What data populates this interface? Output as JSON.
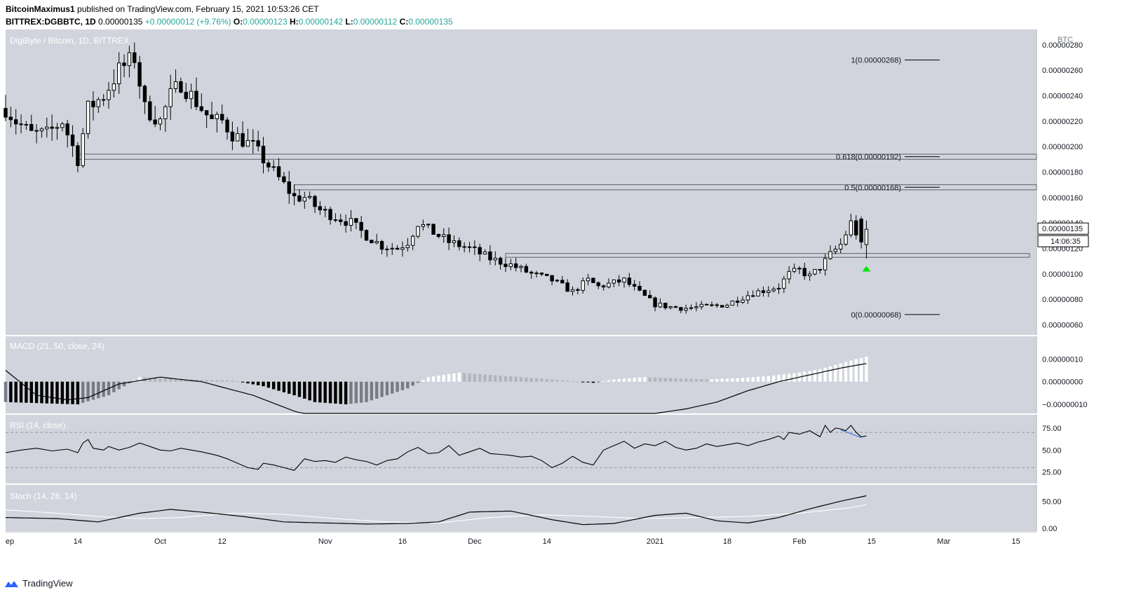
{
  "header": {
    "author": "BitcoinMaximus1",
    "published": "published on TradingView.com, February 15, 2021 10:53:26 CET",
    "symbol": "BITTREX:DGBBTC, 1D",
    "last": "0.00000135",
    "change": "+0.00000012 (+9.76%)",
    "o_label": "O:",
    "o": "0.00000123",
    "h_label": "H:",
    "h": "0.00000142",
    "l_label": "L:",
    "l": "0.00000112",
    "c_label": "C:",
    "c": "0.00000135"
  },
  "footer": {
    "brand": "TradingView"
  },
  "colors": {
    "pane_bg": "#d1d4dc",
    "bull": "#ffffff",
    "bear": "#000000",
    "arrow": "#00e600",
    "rsi_divergence": "#4a7fd6",
    "stoch_d": "#ffffff"
  },
  "chart_data": {
    "type": "candlestick",
    "title": "DigiByte / Bitcoin, 1D, BITTREX",
    "currency": "BTC",
    "price_axis": {
      "min": 5.2e-07,
      "max": 2.92e-06,
      "ticks": [
        "0.00000060",
        "0.00000080",
        "0.00000100",
        "0.00000120",
        "0.00000140",
        "0.00000160",
        "0.00000180",
        "0.00000200",
        "0.00000220",
        "0.00000240",
        "0.00000260",
        "0.00000280"
      ],
      "tick_values": [
        6e-07,
        8e-07,
        1e-06,
        1.2e-06,
        1.4e-06,
        1.6e-06,
        1.8e-06,
        2e-06,
        2.2e-06,
        2.4e-06,
        2.6e-06,
        2.8e-06
      ],
      "last_price_label": "0.00000135",
      "countdown": "14:06:35"
    },
    "x_axis": {
      "ticks": [
        "ep",
        "14",
        "Oct",
        "12",
        "Nov",
        "16",
        "Dec",
        "14",
        "2021",
        "18",
        "Feb",
        "15",
        "Mar",
        "15"
      ],
      "tick_days": [
        -14,
        0,
        16,
        28,
        48,
        63,
        77,
        91,
        112,
        126,
        140,
        154,
        168,
        182
      ]
    },
    "fib_levels": [
      {
        "label": "1(0.00000268)",
        "value": 2.68e-06
      },
      {
        "label": "0.618(0.00000192)",
        "value": 1.92e-06
      },
      {
        "label": "0.5(0.00000168)",
        "value": 1.68e-06
      },
      {
        "label": "0(0.00000068)",
        "value": 6.8e-07
      }
    ],
    "zones": [
      {
        "from_day": 0,
        "low": 1.9e-06,
        "high": 1.94e-06
      },
      {
        "from_day": 42,
        "low": 1.66e-06,
        "high": 1.7e-06
      },
      {
        "from_day": 83,
        "low": 1.13e-06,
        "high": 1.16e-06
      }
    ],
    "ohlc_sample": [
      {
        "day": 152,
        "o": 1.43e-06,
        "h": 1.45e-06,
        "l": 1.2e-06,
        "c": 1.25e-06
      },
      {
        "day": 153,
        "o": 1.23e-06,
        "h": 1.42e-06,
        "l": 1.12e-06,
        "c": 1.35e-06
      }
    ],
    "price_path_days": [
      -14,
      -12,
      -9,
      -6,
      -3,
      0,
      2,
      5,
      8,
      11,
      13,
      16,
      18,
      20,
      22,
      24,
      26,
      28,
      30,
      34,
      36,
      38,
      40,
      42,
      44,
      47,
      50,
      53,
      56,
      59,
      62,
      64,
      66,
      68,
      70,
      72,
      76,
      80,
      84,
      88,
      92,
      96,
      99,
      101,
      103,
      106,
      109,
      112,
      115,
      118,
      121,
      124,
      126,
      128,
      131,
      134,
      136,
      138,
      140,
      142,
      144,
      146,
      148,
      150,
      152,
      153
    ],
    "price_path_closes": [
      2.3e-06,
      2.2e-06,
      2.1e-06,
      2.1e-06,
      2.2e-06,
      1.9e-06,
      2.3e-06,
      2.4e-06,
      2.6e-06,
      2.7e-06,
      2.3e-06,
      2.2e-06,
      2.4e-06,
      2.5e-06,
      2.4e-06,
      2.3e-06,
      2.2e-06,
      2.2e-06,
      2.1e-06,
      2e-06,
      1.9e-06,
      1.8e-06,
      1.7e-06,
      1.6e-06,
      1.6e-06,
      1.5e-06,
      1.45e-06,
      1.4e-06,
      1.3e-06,
      1.22e-06,
      1.2e-06,
      1.25e-06,
      1.4e-06,
      1.35e-06,
      1.3e-06,
      1.25e-06,
      1.2e-06,
      1.12e-06,
      1.07e-06,
      1e-06,
      9.5e-07,
      8.6e-07,
      9.5e-07,
      9e-07,
      9.2e-07,
      9.5e-07,
      8.5e-07,
      7.6e-07,
      7.4e-07,
      7.3e-07,
      7.4e-07,
      7.5e-07,
      7.6e-07,
      8e-07,
      8.5e-07,
      8.8e-07,
      9e-07,
      1e-06,
      1.03e-06,
      9.8e-07,
      1.05e-06,
      1.15e-06,
      1.23e-06,
      1.4e-06,
      1.25e-06,
      1.35e-06
    ],
    "macd": {
      "label": "MACD (21, 50, close, 24)",
      "ticks": [
        "0.00000010",
        "0.00000000",
        "−0.00000010"
      ],
      "tick_values": [
        1e-07,
        0,
        -1e-07
      ],
      "range": [
        -1.4e-07,
        2e-07
      ],
      "hist_days": [
        -14,
        0,
        6,
        12,
        20,
        30,
        36,
        42,
        46,
        52,
        56,
        60,
        64,
        68,
        74,
        80,
        86,
        92,
        100,
        104,
        110,
        116,
        122,
        128,
        134,
        140,
        144,
        148,
        151,
        153
      ],
      "hist_values": [
        -9e-08,
        -1e-07,
        -6e-08,
        2e-08,
        1e-08,
        5e-09,
        -2e-08,
        -6e-08,
        -9e-08,
        -1e-07,
        -9e-08,
        -6e-08,
        -3e-08,
        2e-08,
        4e-08,
        3e-08,
        2e-08,
        1e-08,
        -5e-09,
        1e-08,
        2e-08,
        1.5e-08,
        1e-08,
        1.5e-08,
        2.5e-08,
        4e-08,
        5.5e-08,
        8e-08,
        1e-07,
        1.1e-07
      ],
      "line_days": [
        -14,
        -8,
        -2,
        2,
        8,
        16,
        24,
        34,
        42,
        50,
        60,
        72,
        84,
        96,
        108,
        112,
        118,
        124,
        130,
        136,
        142,
        148,
        153
      ],
      "line_values": [
        5e-08,
        -6e-08,
        -8e-08,
        -7e-08,
        -1e-08,
        2e-08,
        0.0,
        -6e-08,
        -1.3e-07,
        -1.8e-07,
        -2.1e-07,
        -2e-07,
        -1.9e-07,
        -1.8e-07,
        -1.7e-07,
        -1.4e-07,
        -1.2e-07,
        -9e-08,
        -4e-08,
        0.0,
        3e-08,
        6e-08,
        8e-08
      ]
    },
    "rsi": {
      "label": "RSI (14, close)",
      "ticks": [
        "75.00",
        "50.00",
        "25.00"
      ],
      "tick_values": [
        75,
        50,
        25
      ],
      "bands": [
        70,
        30
      ],
      "range": [
        12,
        90
      ],
      "days": [
        -14,
        -11,
        -8,
        -5,
        -2,
        0,
        1,
        2,
        3,
        5,
        6,
        8,
        10,
        12,
        14,
        16,
        18,
        20,
        22,
        24,
        27,
        29,
        31,
        33,
        35,
        36,
        38,
        40,
        42,
        44,
        46,
        48,
        50,
        52,
        54,
        56,
        58,
        60,
        62,
        64,
        66,
        68,
        70,
        72,
        74,
        76,
        78,
        80,
        82,
        84,
        86,
        88,
        90,
        92,
        94,
        96,
        98,
        100,
        102,
        104,
        106,
        108,
        110,
        112,
        114,
        116,
        118,
        120,
        122,
        124,
        126,
        128,
        130,
        132,
        134,
        136,
        137,
        138,
        140,
        142,
        144,
        145,
        146,
        147,
        148,
        149,
        150,
        151,
        152,
        153
      ],
      "values": [
        47,
        50,
        52,
        49,
        51,
        47,
        58,
        62,
        52,
        50,
        54,
        50,
        53,
        58,
        54,
        50,
        49,
        52,
        50,
        48,
        44,
        40,
        35,
        30,
        28,
        35,
        33,
        30,
        27,
        40,
        37,
        38,
        36,
        42,
        39,
        37,
        33,
        38,
        40,
        48,
        53,
        46,
        47,
        55,
        44,
        48,
        52,
        46,
        45,
        44,
        42,
        43,
        38,
        30,
        35,
        43,
        36,
        33,
        50,
        55,
        60,
        52,
        57,
        55,
        60,
        53,
        50,
        52,
        57,
        54,
        56,
        58,
        55,
        59,
        62,
        66,
        62,
        70,
        68,
        72,
        65,
        78,
        70,
        75,
        74,
        72,
        78,
        70,
        65,
        66
      ],
      "divergence": {
        "days": [
          148,
          152
        ],
        "values": [
          73,
          64
        ]
      }
    },
    "stoch": {
      "label": "Stoch (14, 28, 14)",
      "ticks": [
        "50.00",
        "0.00"
      ],
      "tick_values": [
        50,
        0
      ],
      "range": [
        -5,
        80
      ],
      "k_days": [
        -14,
        -4,
        4,
        12,
        18,
        24,
        32,
        40,
        48,
        56,
        64,
        70,
        76,
        84,
        92,
        98,
        104,
        112,
        118,
        124,
        130,
        136,
        142,
        148,
        153
      ],
      "k_values": [
        20,
        18,
        12,
        28,
        35,
        30,
        22,
        12,
        10,
        8,
        9,
        12,
        30,
        32,
        16,
        7,
        9,
        24,
        28,
        14,
        10,
        20,
        36,
        50,
        60
      ],
      "d_days": [
        -14,
        -4,
        4,
        12,
        20,
        30,
        40,
        50,
        60,
        70,
        80,
        90,
        100,
        110,
        120,
        130,
        140,
        150,
        153
      ],
      "d_values": [
        34,
        28,
        22,
        18,
        20,
        28,
        26,
        18,
        12,
        10,
        20,
        25,
        22,
        18,
        20,
        22,
        28,
        38,
        44
      ]
    }
  }
}
